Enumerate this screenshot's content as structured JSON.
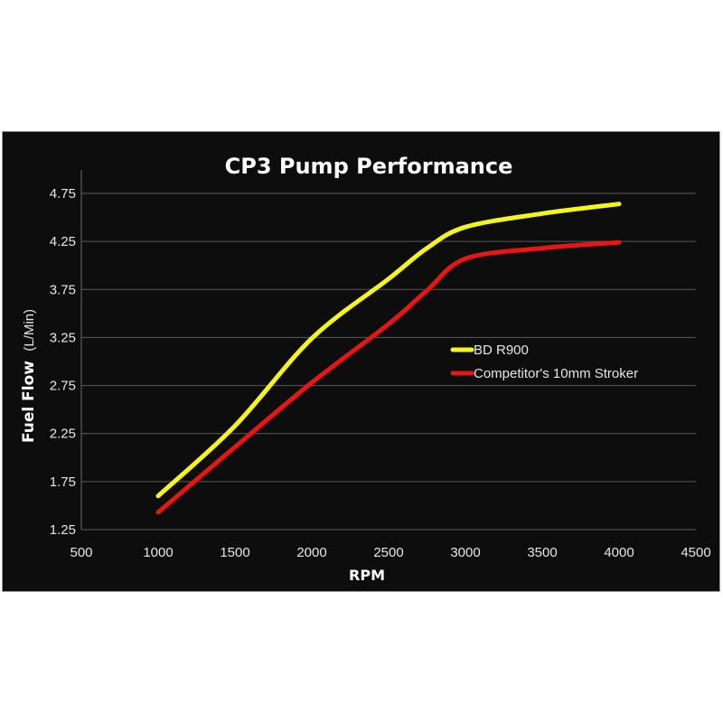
{
  "chart_data": {
    "type": "line",
    "title": "CP3 Pump Performance",
    "xlabel": "RPM",
    "ylabel_bold": "Fuel Flow",
    "ylabel_unit": "(L/Min)",
    "xlim": [
      500,
      4500
    ],
    "ylim": [
      1.25,
      4.75
    ],
    "xticks": [
      "500",
      "1000",
      "1500",
      "2000",
      "2500",
      "3000",
      "3500",
      "4000",
      "4500"
    ],
    "yticks": [
      "1.25",
      "1.75",
      "2.25",
      "2.75",
      "3.25",
      "3.75",
      "4.25",
      "4.75"
    ],
    "grid": true,
    "legend_position": "center-right",
    "background": "#0d0d0d",
    "series": [
      {
        "name": "BD R900",
        "color": "#f5f51e",
        "x": [
          1000,
          1500,
          2000,
          2500,
          2750,
          3000,
          3500,
          4000
        ],
        "y": [
          1.6,
          2.33,
          3.24,
          3.86,
          4.18,
          4.4,
          4.54,
          4.64
        ]
      },
      {
        "name": "Competitor's 10mm Stroker",
        "color": "#e81515",
        "x": [
          1000,
          1500,
          2000,
          2500,
          2750,
          3000,
          3500,
          4000
        ],
        "y": [
          1.43,
          2.11,
          2.78,
          3.39,
          3.74,
          4.07,
          4.18,
          4.24
        ]
      }
    ]
  }
}
